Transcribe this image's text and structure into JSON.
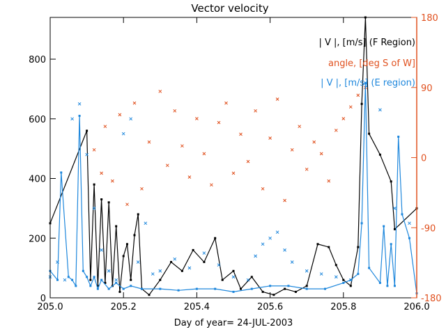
{
  "chart_data": {
    "type": "line+scatter",
    "title": "Vector velocity",
    "xlabel": "Day of year= 24-JUL-2003",
    "xlim": [
      205.0,
      206.0
    ],
    "xticks": [
      205.0,
      205.2,
      205.4,
      205.6,
      205.8,
      206.0
    ],
    "xtick_labels": [
      "205.0",
      "205.2",
      "205.4",
      "205.6",
      "205.8",
      "206.0"
    ],
    "ylim_left": [
      0,
      940
    ],
    "yticks_left": [
      0,
      200,
      400,
      600,
      800
    ],
    "ytick_labels_left": [
      "0",
      "200",
      "400",
      "600",
      "800"
    ],
    "ylim_right": [
      -180,
      180
    ],
    "yticks_right": [
      -180,
      -90,
      0,
      90,
      180
    ],
    "ytick_labels_right": [
      "-180",
      "-90",
      "0",
      "90",
      "180"
    ],
    "colors": {
      "f_region": "#000000",
      "angle": "#e0501e",
      "e_region": "#1e87dc",
      "axis_right": "#e0501e"
    },
    "legend": [
      {
        "label": "| V |, [m/s] (F Region)",
        "color": "#000000"
      },
      {
        "label": "angle, [deg S of W]",
        "color": "#e0501e"
      },
      {
        "label": "| V |, [m/s] (E region)",
        "color": "#1e87dc"
      }
    ],
    "series": [
      {
        "name": "| V |, [m/s] (F Region)",
        "axis": "left",
        "style": "line",
        "color": "#000000",
        "x": [
          205.0,
          205.1,
          205.11,
          205.12,
          205.13,
          205.14,
          205.15,
          205.16,
          205.17,
          205.18,
          205.19,
          205.2,
          205.21,
          205.22,
          205.23,
          205.24,
          205.25,
          205.27,
          205.3,
          205.33,
          205.36,
          205.39,
          205.42,
          205.45,
          205.47,
          205.5,
          205.52,
          205.55,
          205.58,
          205.61,
          205.64,
          205.67,
          205.7,
          205.73,
          205.76,
          205.78,
          205.8,
          205.82,
          205.84,
          205.85,
          205.86,
          205.87,
          205.9,
          205.93,
          205.94,
          206.0
        ],
        "y": [
          250,
          560,
          60,
          380,
          40,
          330,
          50,
          320,
          40,
          240,
          20,
          140,
          180,
          60,
          210,
          280,
          30,
          10,
          60,
          120,
          90,
          160,
          120,
          200,
          60,
          90,
          30,
          70,
          20,
          10,
          30,
          20,
          40,
          180,
          170,
          110,
          60,
          40,
          170,
          650,
          940,
          550,
          480,
          390,
          230,
          300
        ]
      },
      {
        "name": "angle, [deg S of W]",
        "axis": "right",
        "style": "scatter",
        "color": "#e0501e",
        "x": [
          205.12,
          205.14,
          205.15,
          205.17,
          205.19,
          205.21,
          205.23,
          205.25,
          205.27,
          205.3,
          205.32,
          205.34,
          205.36,
          205.38,
          205.4,
          205.42,
          205.44,
          205.46,
          205.48,
          205.5,
          205.52,
          205.54,
          205.56,
          205.58,
          205.6,
          205.62,
          205.64,
          205.66,
          205.68,
          205.7,
          205.72,
          205.74,
          205.76,
          205.78,
          205.8,
          205.82,
          205.84,
          205.86
        ],
        "y": [
          10,
          -20,
          40,
          -30,
          55,
          -60,
          70,
          -40,
          20,
          85,
          -10,
          60,
          15,
          -25,
          50,
          5,
          -35,
          45,
          70,
          -20,
          30,
          -5,
          60,
          -40,
          25,
          75,
          -55,
          10,
          40,
          -15,
          20,
          5,
          -30,
          35,
          50,
          65,
          80,
          90
        ]
      },
      {
        "name": "| V |, [m/s] (E region)",
        "axis": "left",
        "style": "line",
        "color": "#1e87dc",
        "x": [
          205.0,
          205.02,
          205.03,
          205.05,
          205.06,
          205.07,
          205.08,
          205.09,
          205.1,
          205.11,
          205.12,
          205.13,
          205.14,
          205.16,
          205.18,
          205.2,
          205.22,
          205.25,
          205.3,
          205.35,
          205.4,
          205.45,
          205.5,
          205.55,
          205.6,
          205.65,
          205.7,
          205.75,
          205.8,
          205.82,
          205.84,
          205.85,
          205.86,
          205.87,
          205.9,
          205.91,
          205.92,
          205.93,
          205.94,
          205.95,
          205.96,
          205.98,
          206.0
        ],
        "y": [
          90,
          60,
          420,
          70,
          60,
          40,
          610,
          90,
          70,
          40,
          70,
          30,
          60,
          30,
          50,
          30,
          40,
          30,
          30,
          25,
          30,
          30,
          20,
          30,
          40,
          40,
          30,
          30,
          50,
          60,
          80,
          250,
          720,
          100,
          50,
          240,
          40,
          180,
          40,
          540,
          280,
          200,
          15
        ]
      },
      {
        "name": "| V |, [m/s] (E region) scatter",
        "axis": "left",
        "style": "scatter",
        "color": "#1e87dc",
        "x": [
          205.0,
          205.02,
          205.04,
          205.06,
          205.08,
          205.1,
          205.12,
          205.14,
          205.16,
          205.18,
          205.2,
          205.22,
          205.24,
          205.26,
          205.28,
          205.3,
          205.34,
          205.38,
          205.42,
          205.46,
          205.5,
          205.54,
          205.56,
          205.58,
          205.6,
          205.62,
          205.64,
          205.66,
          205.7,
          205.74,
          205.78,
          205.82,
          205.86,
          205.9,
          205.94,
          205.98
        ],
        "y": [
          70,
          120,
          60,
          600,
          650,
          480,
          300,
          160,
          90,
          60,
          550,
          600,
          120,
          250,
          80,
          90,
          130,
          100,
          150,
          110,
          70,
          60,
          140,
          180,
          200,
          220,
          160,
          120,
          90,
          80,
          70,
          60,
          720,
          630,
          300,
          250
        ]
      }
    ]
  }
}
